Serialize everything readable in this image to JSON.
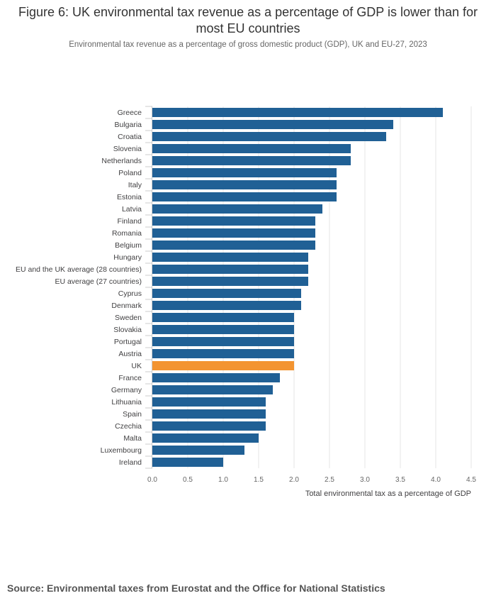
{
  "page": {
    "title": "Figure 6: UK environmental tax revenue as a percentage of GDP is lower than for most EU countries",
    "subtitle": "Environmental tax revenue as a percentage of gross domestic product (GDP), UK and EU-27, 2023",
    "source": "Source: Environmental taxes from Eurostat and the Office for National Statistics"
  },
  "colors": {
    "bar": "#206095",
    "highlight": "#f39431",
    "grid": "#e6e6e6",
    "tick_text": "#666666",
    "label_text": "#414042"
  },
  "chart_data": {
    "type": "bar",
    "orientation": "horizontal",
    "title": "Figure 6: UK environmental tax revenue as a percentage of GDP is lower than for most EU countries",
    "xlabel": "Total environmental tax as a percentage of GDP",
    "ylabel": "",
    "xlim": [
      0,
      4.5
    ],
    "xticks": [
      0,
      0.5,
      1,
      1.5,
      2,
      2.5,
      3,
      3.5,
      4,
      4.5
    ],
    "xtick_labels": [
      "0.0",
      "0.5",
      "1.0",
      "1.5",
      "2.0",
      "2.5",
      "3.0",
      "3.5",
      "4.0",
      "4.5"
    ],
    "grid": true,
    "highlight": "UK",
    "categories": [
      "Greece",
      "Bulgaria",
      "Croatia",
      "Slovenia",
      "Netherlands",
      "Poland",
      "Italy",
      "Estonia",
      "Latvia",
      "Finland",
      "Romania",
      "Belgium",
      "Hungary",
      "EU and the UK average (28 countries)",
      "EU average (27 countries)",
      "Cyprus",
      "Denmark",
      "Sweden",
      "Slovakia",
      "Portugal",
      "Austria",
      "UK",
      "France",
      "Germany",
      "Lithuania",
      "Spain",
      "Czechia",
      "Malta",
      "Luxembourg",
      "Ireland"
    ],
    "values": [
      4.1,
      3.4,
      3.3,
      2.8,
      2.8,
      2.6,
      2.6,
      2.6,
      2.4,
      2.3,
      2.3,
      2.3,
      2.2,
      2.2,
      2.2,
      2.1,
      2.1,
      2.0,
      2.0,
      2.0,
      2.0,
      2.0,
      1.8,
      1.7,
      1.6,
      1.6,
      1.6,
      1.5,
      1.3,
      1.0
    ]
  }
}
